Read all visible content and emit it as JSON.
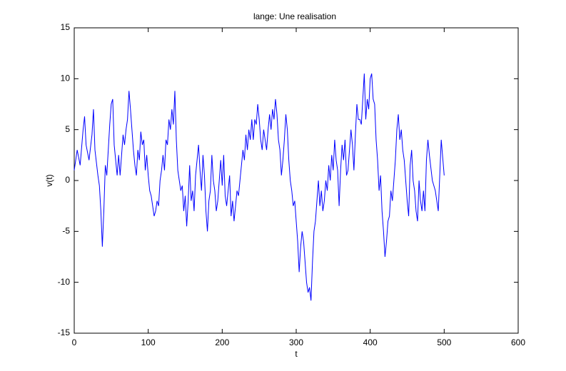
{
  "chart_data": {
    "type": "line",
    "title": "lange:     Une realisation",
    "x_label": "t",
    "y_label": "v(t)",
    "x": [
      0,
      4,
      8,
      12,
      14,
      16,
      20,
      24,
      26,
      28,
      32,
      34,
      36,
      38,
      40,
      42,
      44,
      46,
      48,
      50,
      52,
      54,
      56,
      58,
      60,
      62,
      64,
      66,
      68,
      70,
      72,
      74,
      76,
      78,
      80,
      82,
      84,
      86,
      88,
      90,
      92,
      94,
      96,
      98,
      100,
      102,
      104,
      106,
      108,
      110,
      112,
      114,
      116,
      118,
      120,
      122,
      124,
      126,
      128,
      130,
      132,
      134,
      136,
      138,
      140,
      142,
      144,
      146,
      148,
      150,
      152,
      154,
      156,
      158,
      160,
      162,
      164,
      166,
      168,
      170,
      172,
      174,
      176,
      178,
      180,
      182,
      184,
      186,
      188,
      190,
      192,
      194,
      196,
      198,
      200,
      202,
      204,
      206,
      208,
      210,
      212,
      214,
      216,
      218,
      220,
      222,
      224,
      226,
      228,
      230,
      232,
      234,
      236,
      238,
      240,
      242,
      244,
      246,
      248,
      250,
      252,
      254,
      256,
      258,
      260,
      262,
      264,
      266,
      268,
      270,
      272,
      274,
      276,
      278,
      280,
      282,
      284,
      286,
      288,
      290,
      292,
      294,
      296,
      298,
      300,
      302,
      304,
      306,
      308,
      310,
      312,
      314,
      316,
      318,
      320,
      322,
      324,
      326,
      328,
      330,
      332,
      334,
      336,
      338,
      340,
      342,
      344,
      346,
      348,
      350,
      352,
      354,
      356,
      358,
      360,
      362,
      364,
      366,
      368,
      370,
      372,
      374,
      376,
      378,
      380,
      382,
      384,
      386,
      388,
      390,
      392,
      394,
      396,
      398,
      400,
      402,
      404,
      406,
      408,
      410,
      412,
      414,
      416,
      418,
      420,
      422,
      424,
      426,
      428,
      430,
      432,
      434,
      436,
      438,
      440,
      442,
      444,
      446,
      448,
      450,
      452,
      454,
      456,
      458,
      460,
      462,
      464,
      466,
      468,
      470,
      472,
      474,
      476,
      478,
      480,
      484,
      488,
      492,
      496,
      500
    ],
    "series": [
      {
        "color": "#0000ff",
        "values": [
          1,
          3,
          1.5,
          5,
          6.3,
          3.5,
          2,
          4.5,
          7,
          3,
          0.5,
          -0.5,
          -3,
          -6.5,
          -3,
          1.5,
          0.5,
          3,
          5.5,
          7.5,
          8,
          3.5,
          2,
          0.5,
          2.5,
          0.5,
          2.5,
          4.5,
          3.5,
          5,
          6,
          8.8,
          7,
          5,
          3,
          1.5,
          0.5,
          3,
          2,
          4.8,
          3.5,
          4,
          1,
          2.5,
          0.5,
          -1,
          -1.5,
          -2.5,
          -3.5,
          -3,
          -2,
          -2.5,
          0,
          1,
          2.5,
          1,
          4,
          3.5,
          6,
          5,
          7,
          5.5,
          8.8,
          4,
          1,
          0,
          -1,
          -0.5,
          -3,
          -1.5,
          -4.5,
          -2,
          1.5,
          -2,
          -1,
          -3,
          0.5,
          2,
          3.5,
          1,
          -1,
          2.5,
          0.5,
          -3,
          -5,
          -2,
          -1,
          2.5,
          0,
          -1,
          -3,
          -2,
          0,
          2,
          -0.5,
          2.5,
          -1.5,
          -2.5,
          -1,
          0.5,
          -3.5,
          -2,
          -4,
          -2.5,
          -1,
          -1.5,
          0,
          1.5,
          3,
          2,
          4.5,
          3,
          5,
          4,
          6,
          4,
          6,
          5.5,
          7.5,
          6,
          4,
          3,
          5,
          4,
          3,
          5,
          6.5,
          5,
          7,
          6,
          8,
          6.5,
          4,
          3,
          0.5,
          2,
          4,
          6.5,
          5,
          2,
          0,
          -1,
          -2.5,
          -2,
          -4,
          -6,
          -9,
          -6.5,
          -5,
          -6,
          -8,
          -10,
          -11,
          -10.5,
          -11.8,
          -8,
          -5,
          -4,
          -2,
          0,
          -2.5,
          -1,
          -3,
          -2,
          0,
          -1,
          1.5,
          0,
          2.5,
          1,
          4,
          2,
          1,
          -2.5,
          1,
          3.5,
          2,
          4,
          0.5,
          1,
          3,
          5,
          3.5,
          1,
          4.5,
          7.5,
          6,
          6,
          5.5,
          8,
          10.5,
          6,
          8,
          7,
          10,
          10.5,
          8,
          7.5,
          4,
          2,
          -1,
          0.5,
          -3,
          -5,
          -7.5,
          -6,
          -4,
          -3.5,
          -1,
          -2,
          0,
          2,
          5,
          6.5,
          4,
          5,
          3,
          2,
          0,
          -2,
          -3.5,
          1.5,
          3,
          0,
          -1,
          -3,
          -4,
          0,
          -2,
          -3,
          -1,
          -3,
          2,
          4,
          2.5,
          0,
          -1,
          -3,
          4,
          0.5
        ]
      }
    ],
    "xlim": [
      0,
      600
    ],
    "xticks": [
      0,
      100,
      200,
      300,
      400,
      500,
      600
    ],
    "ylim": [
      -15,
      15
    ],
    "yticks": [
      -15,
      -10,
      -5,
      0,
      5,
      10,
      15
    ],
    "grid": false
  }
}
